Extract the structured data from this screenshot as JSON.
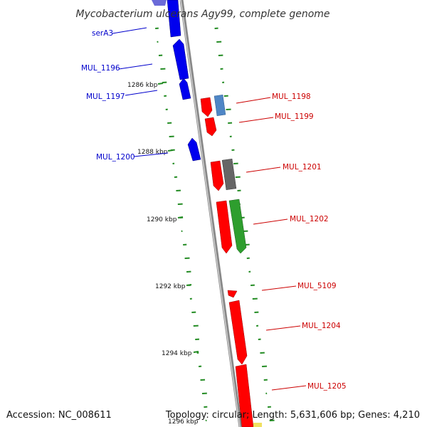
{
  "title": "Mycobacterium ulcerans Agy99, complete genome",
  "footer": {
    "accession": "Accession: NC_008611",
    "topology": "Topology: circular; Length: 5,631,606 bp; Genes: 4,210"
  },
  "colors": {
    "reverse_strand": "#0000ee",
    "forward_strand": "#ff0000",
    "gc_skew": "#228b22",
    "backbone": "#999999",
    "label_left": "#0000cc",
    "label_right": "#cc0000"
  },
  "ticks": [
    {
      "label": "1286 kbp"
    },
    {
      "label": "1288 kbp"
    },
    {
      "label": "1290 kbp"
    },
    {
      "label": "1292 kbp"
    },
    {
      "label": "1294 kbp"
    },
    {
      "label": "1296 kbp"
    }
  ],
  "genes_left": [
    {
      "label": "serA3"
    },
    {
      "label": "MUL_1196"
    },
    {
      "label": "MUL_1197"
    },
    {
      "label": "MUL_1200"
    }
  ],
  "genes_right": [
    {
      "label": "MUL_1198"
    },
    {
      "label": "MUL_1199"
    },
    {
      "label": "MUL_1201"
    },
    {
      "label": "MUL_1202"
    },
    {
      "label": "MUL_5109"
    },
    {
      "label": "MUL_1204"
    },
    {
      "label": "MUL_1205"
    }
  ]
}
